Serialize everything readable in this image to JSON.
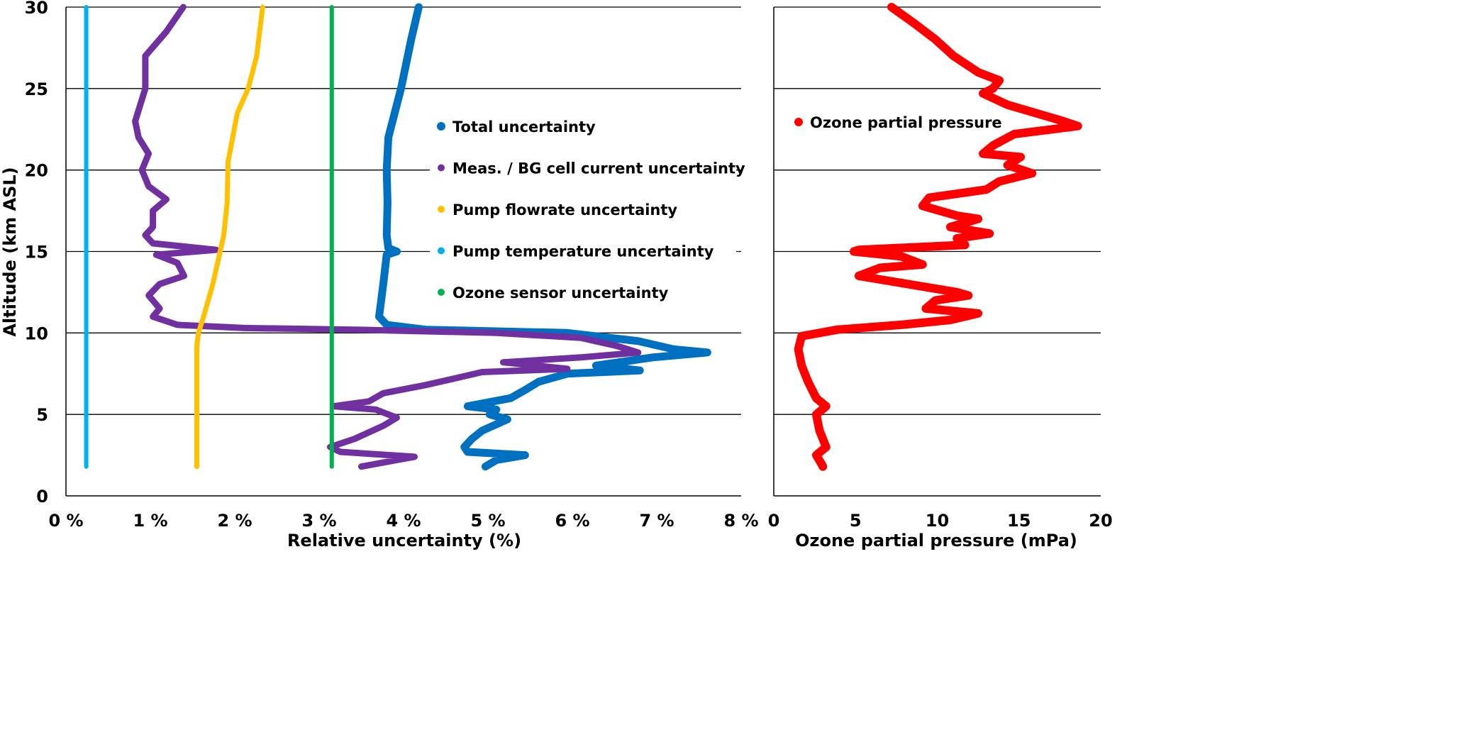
{
  "chart_data": [
    {
      "type": "scatter",
      "xlabel": "Relative uncertainty (%)",
      "ylabel": "Altitude (km ASL)",
      "xlim": [
        0,
        8
      ],
      "ylim": [
        0,
        30
      ],
      "xticks": [
        "0 %",
        "1 %",
        "2 %",
        "3 %",
        "4 %",
        "5 %",
        "6 %",
        "7 %",
        "8 %"
      ],
      "yticks": [
        "0",
        "5",
        "10",
        "15",
        "20",
        "25",
        "30"
      ],
      "grid": "horizontal",
      "legend_position": "right",
      "series": [
        {
          "name": "Total uncertainty",
          "color": "#0070C0",
          "points": [
            [
              4.18,
              30
            ],
            [
              4.09,
              28
            ],
            [
              3.97,
              25
            ],
            [
              3.87,
              23
            ],
            [
              3.82,
              22
            ],
            [
              3.8,
              20
            ],
            [
              3.81,
              18
            ],
            [
              3.8,
              16
            ],
            [
              3.82,
              15.2
            ],
            [
              3.92,
              15.0
            ],
            [
              3.8,
              14.8
            ],
            [
              3.76,
              13
            ],
            [
              3.71,
              11
            ],
            [
              3.8,
              10.5
            ],
            [
              4.26,
              10.2
            ],
            [
              5.94,
              10.0
            ],
            [
              6.78,
              9.5
            ],
            [
              7.2,
              9.0
            ],
            [
              7.6,
              8.8
            ],
            [
              6.95,
              8.5
            ],
            [
              6.28,
              8.0
            ],
            [
              6.8,
              7.7
            ],
            [
              5.94,
              7.5
            ],
            [
              5.6,
              7.0
            ],
            [
              5.44,
              6.5
            ],
            [
              5.27,
              6.0
            ],
            [
              4.76,
              5.5
            ],
            [
              5.1,
              5.3
            ],
            [
              5.02,
              5.0
            ],
            [
              5.23,
              4.7
            ],
            [
              4.93,
              4.0
            ],
            [
              4.81,
              3.5
            ],
            [
              4.72,
              3.0
            ],
            [
              4.76,
              2.7
            ],
            [
              5.44,
              2.5
            ],
            [
              5.1,
              2.2
            ],
            [
              4.97,
              1.8
            ]
          ]
        },
        {
          "name": "Meas. / BG cell current uncertainty",
          "color": "#7030A0",
          "points": [
            [
              1.39,
              30
            ],
            [
              1.19,
              28.5
            ],
            [
              0.94,
              27
            ],
            [
              0.94,
              25
            ],
            [
              0.82,
              23
            ],
            [
              0.86,
              22
            ],
            [
              0.98,
              21
            ],
            [
              0.9,
              20
            ],
            [
              0.98,
              19
            ],
            [
              1.19,
              18.2
            ],
            [
              1.03,
              17.5
            ],
            [
              1.03,
              16.5
            ],
            [
              0.94,
              16
            ],
            [
              1.03,
              15.5
            ],
            [
              1.78,
              15.1
            ],
            [
              1.07,
              14.8
            ],
            [
              1.32,
              14.3
            ],
            [
              1.4,
              13.5
            ],
            [
              1.11,
              13
            ],
            [
              0.98,
              12.3
            ],
            [
              1.11,
              11.5
            ],
            [
              1.03,
              11
            ],
            [
              1.32,
              10.5
            ],
            [
              2.12,
              10.3
            ],
            [
              3.42,
              10.2
            ],
            [
              5.1,
              10.0
            ],
            [
              6.1,
              9.7
            ],
            [
              6.53,
              9.2
            ],
            [
              6.78,
              8.8
            ],
            [
              6.1,
              8.5
            ],
            [
              5.18,
              8.2
            ],
            [
              5.94,
              7.8
            ],
            [
              4.93,
              7.6
            ],
            [
              4.6,
              7.2
            ],
            [
              4.26,
              6.8
            ],
            [
              3.76,
              6.3
            ],
            [
              3.59,
              5.8
            ],
            [
              3.17,
              5.5
            ],
            [
              3.67,
              5.3
            ],
            [
              3.92,
              4.8
            ],
            [
              3.76,
              4.3
            ],
            [
              3.42,
              3.5
            ],
            [
              3.13,
              3.0
            ],
            [
              3.25,
              2.7
            ],
            [
              4.13,
              2.4
            ],
            [
              3.92,
              2.2
            ],
            [
              3.5,
              1.8
            ]
          ]
        },
        {
          "name": "Pump flowrate uncertainty",
          "color": "#FFC000",
          "points": [
            [
              2.33,
              30
            ],
            [
              2.26,
              27
            ],
            [
              2.16,
              25
            ],
            [
              2.03,
              23.5
            ],
            [
              1.92,
              20.5
            ],
            [
              1.91,
              18
            ],
            [
              1.87,
              16
            ],
            [
              1.74,
              13
            ],
            [
              1.63,
              11
            ],
            [
              1.57,
              10
            ],
            [
              1.55,
              9.2
            ],
            [
              1.55,
              1.8
            ]
          ]
        },
        {
          "name": "Pump  temperature uncertainty",
          "color": "#00B0F0",
          "points": [
            [
              0.24,
              30
            ],
            [
              0.24,
              1.8
            ]
          ]
        },
        {
          "name": "Ozone sensor uncertainty",
          "color": "#00B050",
          "points": [
            [
              3.15,
              30
            ],
            [
              3.15,
              1.8
            ]
          ]
        }
      ]
    },
    {
      "type": "scatter",
      "xlabel": "Ozone partial pressure (mPa)",
      "ylabel": "",
      "xlim": [
        0,
        20
      ],
      "ylim": [
        0,
        30
      ],
      "xticks": [
        "0",
        "5",
        "10",
        "15",
        "20"
      ],
      "grid": "horizontal",
      "legend_position": "top-left",
      "series": [
        {
          "name": "Ozone partial pressure",
          "color": "#FF0000",
          "points": [
            [
              7.2,
              30
            ],
            [
              8.6,
              29
            ],
            [
              9.9,
              28
            ],
            [
              11.0,
              27
            ],
            [
              12.5,
              26
            ],
            [
              13.8,
              25.5
            ],
            [
              13.4,
              25
            ],
            [
              12.8,
              24.7
            ],
            [
              14.3,
              24
            ],
            [
              16.0,
              23.5
            ],
            [
              17.7,
              23
            ],
            [
              18.6,
              22.7
            ],
            [
              14.7,
              22.2
            ],
            [
              13.4,
              21.5
            ],
            [
              12.8,
              21
            ],
            [
              15.1,
              20.8
            ],
            [
              14.3,
              20.3
            ],
            [
              15.8,
              19.8
            ],
            [
              13.8,
              19.3
            ],
            [
              13.0,
              18.8
            ],
            [
              9.5,
              18.3
            ],
            [
              9.1,
              17.8
            ],
            [
              11.2,
              17.2
            ],
            [
              12.5,
              17
            ],
            [
              10.8,
              16.5
            ],
            [
              13.2,
              16.1
            ],
            [
              11.2,
              15.8
            ],
            [
              11.7,
              15.4
            ],
            [
              5.2,
              15.1
            ],
            [
              4.9,
              15.0
            ],
            [
              7.8,
              14.7
            ],
            [
              9.1,
              14.2
            ],
            [
              6.5,
              14.0
            ],
            [
              5.2,
              13.5
            ],
            [
              8.2,
              13.0
            ],
            [
              11.2,
              12.5
            ],
            [
              11.9,
              12.3
            ],
            [
              9.9,
              12.0
            ],
            [
              9.3,
              11.5
            ],
            [
              12.5,
              11.2
            ],
            [
              10.8,
              10.8
            ],
            [
              7.8,
              10.5
            ],
            [
              3.9,
              10.2
            ],
            [
              1.7,
              9.8
            ],
            [
              1.5,
              9.0
            ],
            [
              1.7,
              8.0
            ],
            [
              1.9,
              7.5
            ],
            [
              2.1,
              7.0
            ],
            [
              2.6,
              6.0
            ],
            [
              3.2,
              5.5
            ],
            [
              2.6,
              5.0
            ],
            [
              2.8,
              4.0
            ],
            [
              3.2,
              3.0
            ],
            [
              2.6,
              2.5
            ],
            [
              2.9,
              2.0
            ],
            [
              3.0,
              1.8
            ]
          ]
        }
      ]
    }
  ]
}
